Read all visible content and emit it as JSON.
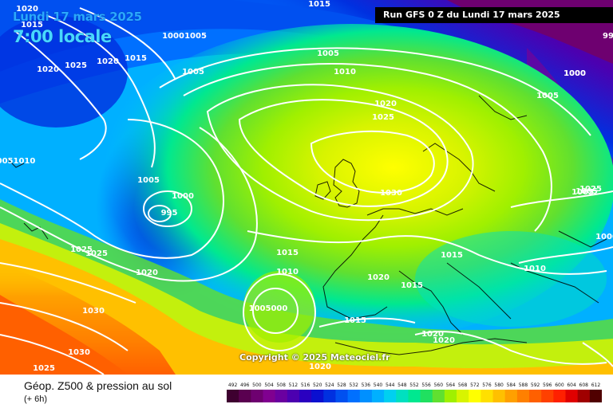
{
  "header": {
    "date": "Lundi 17 mars 2025",
    "time": "7:00 locale",
    "run": "Run GFS 0 Z du Lundi 17 mars 2025"
  },
  "copyright": "Copyright © 2025 Meteociel.fr",
  "footer": {
    "title": "Géop. Z500 & pression au sol",
    "subtitle": "(+ 6h)"
  },
  "scale": {
    "values": [
      492,
      496,
      500,
      504,
      508,
      512,
      516,
      520,
      524,
      528,
      532,
      536,
      540,
      544,
      548,
      552,
      556,
      560,
      564,
      568,
      572,
      576,
      580,
      584,
      588,
      592,
      596,
      600,
      604,
      608,
      612
    ],
    "colors": [
      "#3e0030",
      "#5a0050",
      "#6e0070",
      "#800090",
      "#6a00a0",
      "#4c00b0",
      "#2a00c0",
      "#0a10d0",
      "#0030e0",
      "#0050f0",
      "#0070ff",
      "#0090ff",
      "#00b0ff",
      "#00d0f0",
      "#00e0c0",
      "#00e890",
      "#20e060",
      "#60e030",
      "#a0f000",
      "#d8f400",
      "#ffff00",
      "#ffe000",
      "#ffc000",
      "#ffa000",
      "#ff8000",
      "#ff6000",
      "#ff4000",
      "#ff2000",
      "#e00000",
      "#a00000",
      "#500000"
    ]
  },
  "pressure_labels": [
    "1020",
    "1015",
    "1015",
    "1005",
    "1000",
    "1005",
    "1020",
    "1025",
    "1015",
    "1005",
    "1020",
    "1010",
    "1000",
    "99",
    "0051010",
    "1005",
    "1000",
    "995",
    "1020",
    "1025",
    "1030",
    "1005",
    "1025",
    "1025",
    "1025",
    "1020",
    "1015",
    "1010",
    "1020",
    "1015",
    "1010",
    "1030",
    "1005000",
    "1015",
    "1030",
    "1025",
    "1020",
    "1020",
    "1015",
    "1020",
    "1005",
    "1000",
    "1005",
    "1000"
  ]
}
